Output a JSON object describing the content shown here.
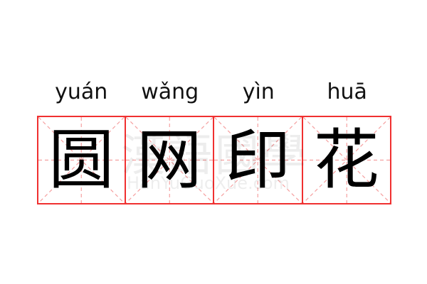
{
  "entries": [
    {
      "pinyin": "yuán",
      "char": "圆"
    },
    {
      "pinyin": "wǎng",
      "char": "网"
    },
    {
      "pinyin": "yìn",
      "char": "印"
    },
    {
      "pinyin": "huā",
      "char": "花"
    }
  ],
  "watermark": {
    "cn": "漢語國學",
    "en": "HanYuGuoXue.com"
  },
  "colors": {
    "grid_border": "#f03030",
    "guide_lines": "#f5a0a0",
    "text": "#000000"
  }
}
